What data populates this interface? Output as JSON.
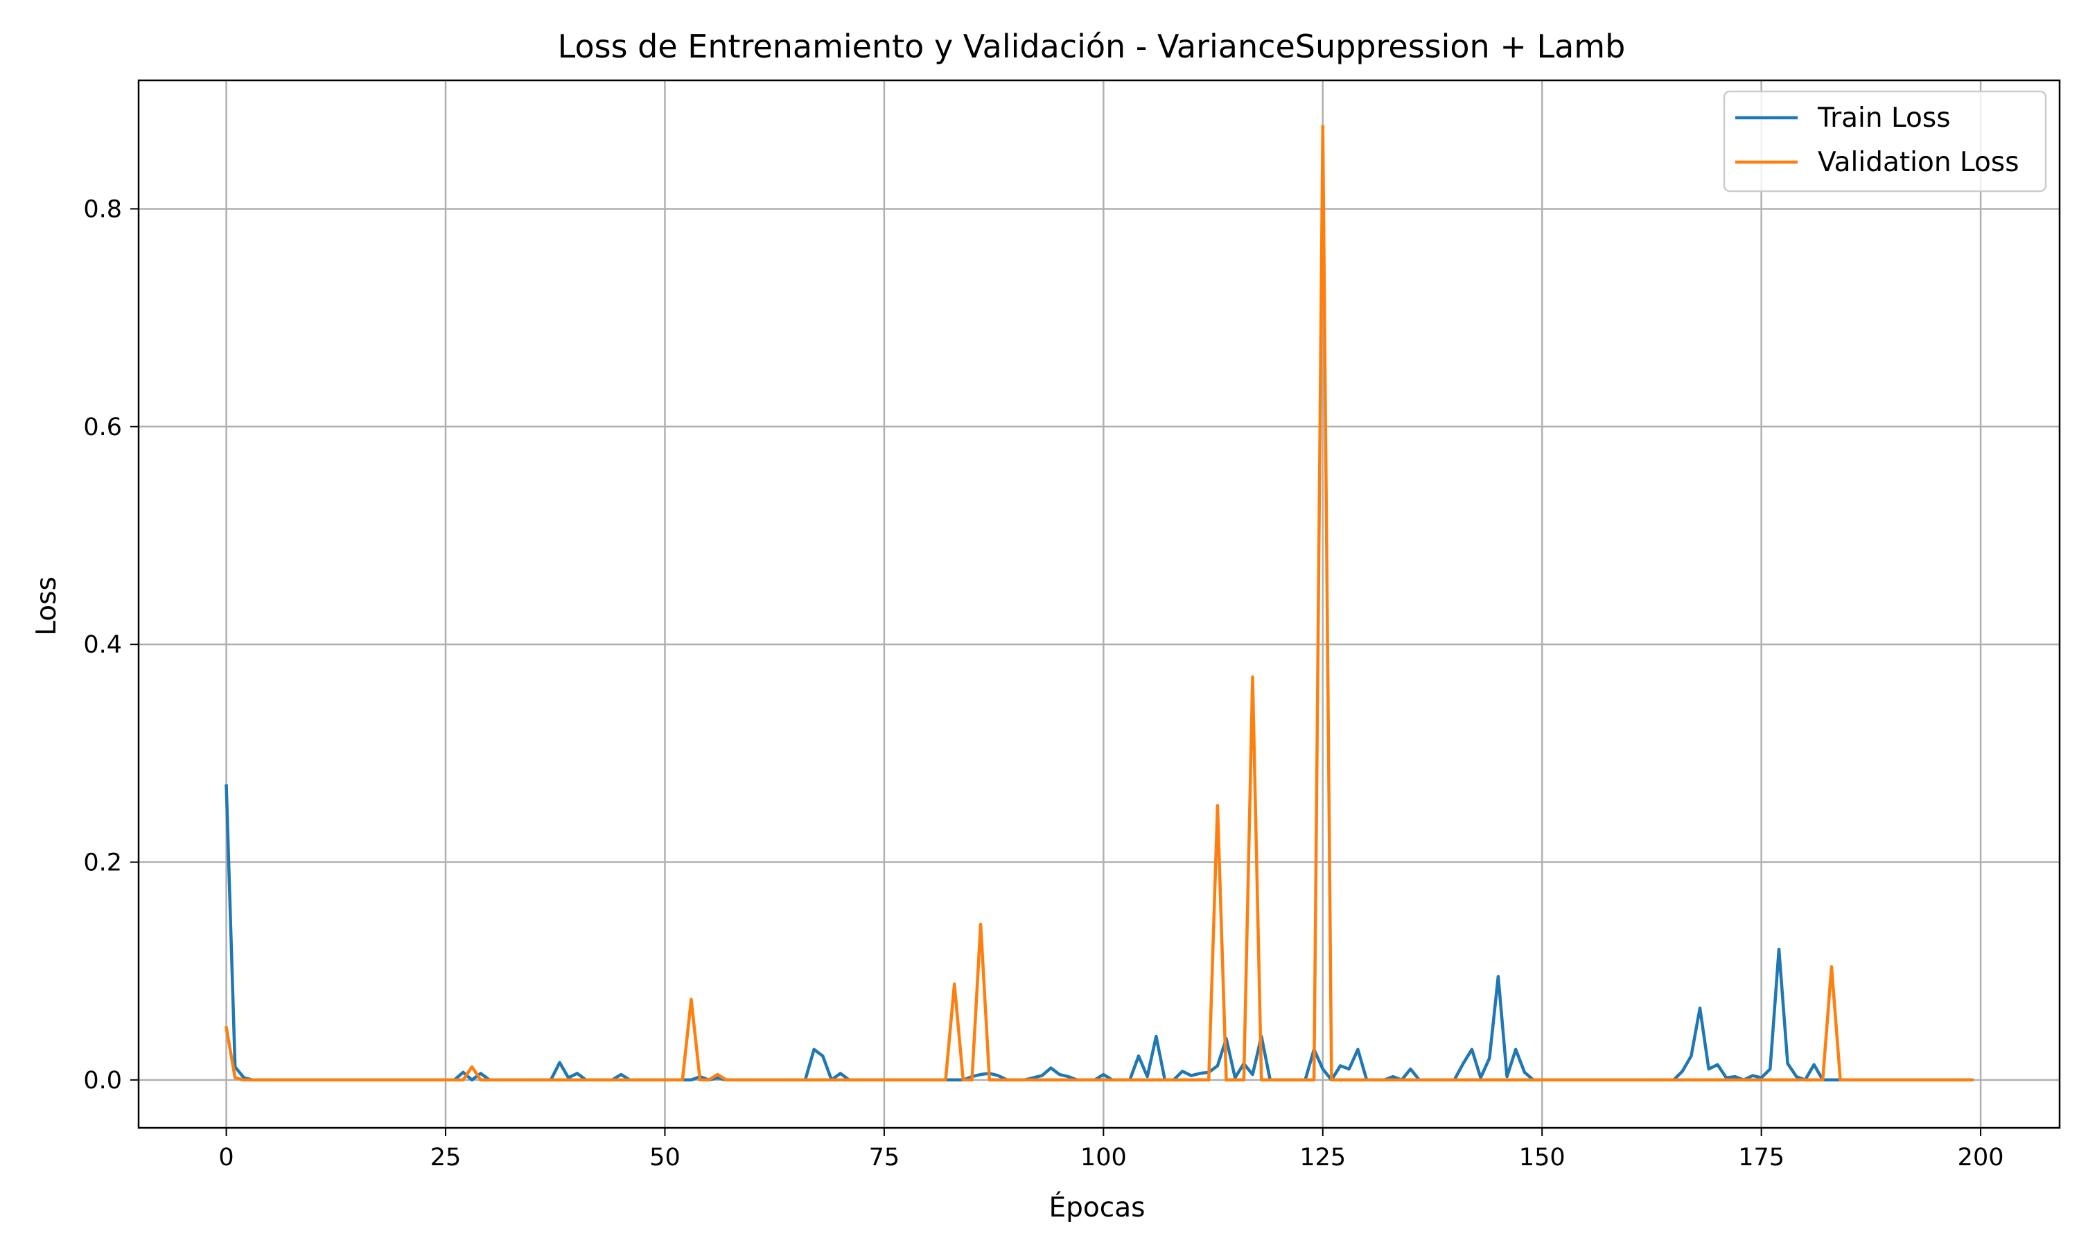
{
  "chart_data": {
    "type": "line",
    "title": "Loss de Entrenamiento y Validación - VarianceSuppression + Lamb",
    "xlabel": "Épocas",
    "ylabel": "Loss",
    "xlim": [
      -10,
      209
    ],
    "ylim": [
      -0.044,
      0.918
    ],
    "xticks": [
      0,
      25,
      50,
      75,
      100,
      125,
      150,
      175,
      200
    ],
    "yticks": [
      0.0,
      0.2,
      0.4,
      0.6,
      0.8
    ],
    "xtick_labels": [
      "0",
      "25",
      "50",
      "75",
      "100",
      "125",
      "150",
      "175",
      "200"
    ],
    "ytick_labels": [
      "0.0",
      "0.2",
      "0.4",
      "0.6",
      "0.8"
    ],
    "grid": true,
    "legend_position": "top-right",
    "x_range": [
      0,
      199
    ],
    "series": [
      {
        "name": "Train Loss",
        "color": "#1f77b4",
        "default": 0.0,
        "points": [
          [
            0,
            0.27
          ],
          [
            1,
            0.012
          ],
          [
            2,
            0.002
          ],
          [
            26,
            0.0
          ],
          [
            27,
            0.007
          ],
          [
            28,
            0.0
          ],
          [
            29,
            0.006
          ],
          [
            30,
            0.0
          ],
          [
            37,
            0.0
          ],
          [
            38,
            0.016
          ],
          [
            39,
            0.002
          ],
          [
            40,
            0.006
          ],
          [
            41,
            0.0
          ],
          [
            44,
            0.0
          ],
          [
            45,
            0.005
          ],
          [
            46,
            0.0
          ],
          [
            53,
            0.0
          ],
          [
            54,
            0.003
          ],
          [
            55,
            0.0
          ],
          [
            56,
            0.002
          ],
          [
            57,
            0.0
          ],
          [
            66,
            0.0
          ],
          [
            67,
            0.028
          ],
          [
            68,
            0.022
          ],
          [
            69,
            0.0
          ],
          [
            70,
            0.006
          ],
          [
            71,
            0.0
          ],
          [
            84,
            0.0
          ],
          [
            85,
            0.003
          ],
          [
            86,
            0.005
          ],
          [
            87,
            0.006
          ],
          [
            88,
            0.004
          ],
          [
            89,
            0.0
          ],
          [
            91,
            0.0
          ],
          [
            92,
            0.002
          ],
          [
            93,
            0.004
          ],
          [
            94,
            0.011
          ],
          [
            95,
            0.005
          ],
          [
            96,
            0.003
          ],
          [
            97,
            0.0
          ],
          [
            99,
            0.0
          ],
          [
            100,
            0.005
          ],
          [
            101,
            0.0
          ],
          [
            103,
            0.0
          ],
          [
            104,
            0.022
          ],
          [
            105,
            0.003
          ],
          [
            106,
            0.04
          ],
          [
            107,
            0.0
          ],
          [
            108,
            0.0
          ],
          [
            109,
            0.008
          ],
          [
            110,
            0.004
          ],
          [
            111,
            0.006
          ],
          [
            112,
            0.007
          ],
          [
            113,
            0.013
          ],
          [
            114,
            0.038
          ],
          [
            115,
            0.002
          ],
          [
            116,
            0.015
          ],
          [
            117,
            0.005
          ],
          [
            118,
            0.04
          ],
          [
            119,
            0.0
          ],
          [
            123,
            0.0
          ],
          [
            124,
            0.028
          ],
          [
            125,
            0.01
          ],
          [
            126,
            0.0
          ],
          [
            127,
            0.013
          ],
          [
            128,
            0.01
          ],
          [
            129,
            0.028
          ],
          [
            130,
            0.0
          ],
          [
            132,
            0.0
          ],
          [
            133,
            0.003
          ],
          [
            134,
            0.0
          ],
          [
            135,
            0.01
          ],
          [
            136,
            0.0
          ],
          [
            140,
            0.0
          ],
          [
            141,
            0.015
          ],
          [
            142,
            0.028
          ],
          [
            143,
            0.002
          ],
          [
            144,
            0.02
          ],
          [
            145,
            0.095
          ],
          [
            146,
            0.003
          ],
          [
            147,
            0.028
          ],
          [
            148,
            0.007
          ],
          [
            149,
            0.0
          ],
          [
            165,
            0.0
          ],
          [
            166,
            0.008
          ],
          [
            167,
            0.022
          ],
          [
            168,
            0.066
          ],
          [
            169,
            0.01
          ],
          [
            170,
            0.014
          ],
          [
            171,
            0.002
          ],
          [
            172,
            0.003
          ],
          [
            173,
            0.0
          ],
          [
            174,
            0.004
          ],
          [
            175,
            0.002
          ],
          [
            176,
            0.01
          ],
          [
            177,
            0.12
          ],
          [
            178,
            0.015
          ],
          [
            179,
            0.003
          ],
          [
            180,
            0.0
          ],
          [
            181,
            0.014
          ],
          [
            182,
            0.0
          ],
          [
            199,
            0.0
          ]
        ]
      },
      {
        "name": "Validation Loss",
        "color": "#ff7f0e",
        "default": 0.0,
        "points": [
          [
            0,
            0.048
          ],
          [
            1,
            0.002
          ],
          [
            2,
            0.0
          ],
          [
            27,
            0.0
          ],
          [
            28,
            0.012
          ],
          [
            29,
            0.0
          ],
          [
            52,
            0.0
          ],
          [
            53,
            0.074
          ],
          [
            54,
            0.0
          ],
          [
            55,
            0.0
          ],
          [
            56,
            0.005
          ],
          [
            57,
            0.0
          ],
          [
            82,
            0.0
          ],
          [
            83,
            0.088
          ],
          [
            84,
            0.0
          ],
          [
            85,
            0.0
          ],
          [
            86,
            0.143
          ],
          [
            87,
            0.0
          ],
          [
            112,
            0.0
          ],
          [
            113,
            0.252
          ],
          [
            114,
            0.0
          ],
          [
            116,
            0.0
          ],
          [
            117,
            0.37
          ],
          [
            118,
            0.0
          ],
          [
            124,
            0.0
          ],
          [
            125,
            0.876
          ],
          [
            126,
            0.0
          ],
          [
            182,
            0.0
          ],
          [
            183,
            0.104
          ],
          [
            184,
            0.0
          ],
          [
            199,
            0.0
          ]
        ]
      }
    ]
  }
}
